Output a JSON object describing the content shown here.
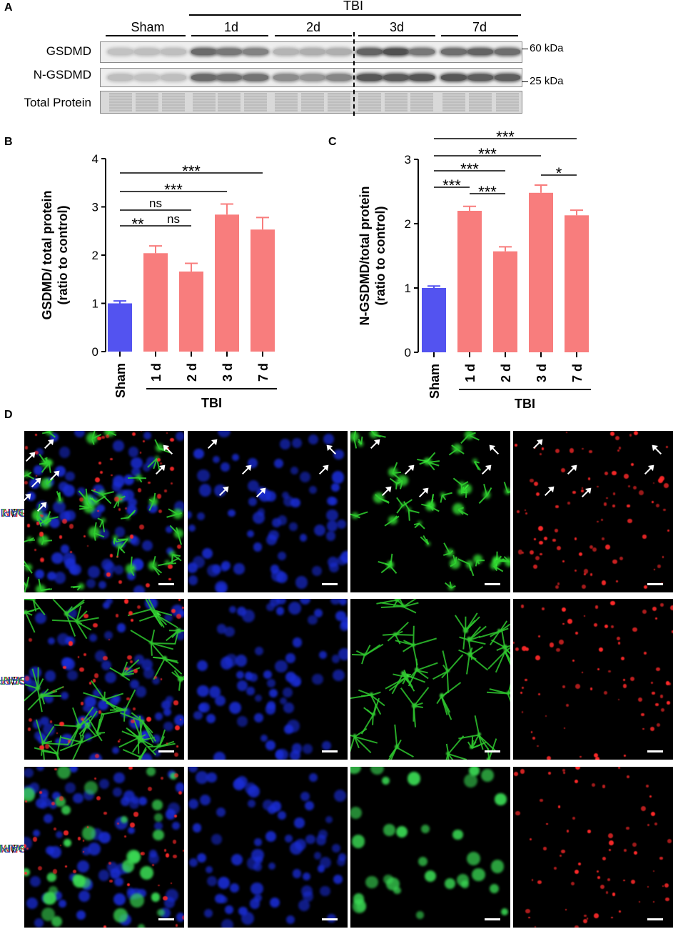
{
  "panels": {
    "a": "A",
    "b": "B",
    "c": "C",
    "d": "D"
  },
  "blot": {
    "tbi_label": "TBI",
    "groups": [
      "Sham",
      "1d",
      "2d",
      "3d",
      "7d"
    ],
    "rows": [
      "GSDMD",
      "N-GSDMD",
      "Total Protein"
    ],
    "markers": [
      "60 kDa",
      "25 kDa"
    ]
  },
  "chart_data": [
    {
      "type": "bar",
      "categories": [
        "Sham",
        "1 d",
        "2 d",
        "3 d",
        "7 d"
      ],
      "values": [
        1.0,
        2.04,
        1.66,
        2.84,
        2.53
      ],
      "errors": [
        0.05,
        0.15,
        0.17,
        0.22,
        0.25
      ],
      "colors": [
        "#5353f0",
        "#f87d7d",
        "#f87d7d",
        "#f87d7d",
        "#f87d7d"
      ],
      "ylabel": "GSDMD/ total protein (ratio to control)",
      "ylabel_lines": [
        "GSDMD/ total protein",
        "(ratio to control)"
      ],
      "ylim": [
        0,
        4
      ],
      "yticks": [
        "0",
        "1",
        "2",
        "3",
        "4"
      ],
      "group_label": "TBI",
      "significance": [
        {
          "from": "Sham",
          "to": "7 d",
          "label": "***"
        },
        {
          "from": "Sham",
          "to": "3 d",
          "label": "***"
        },
        {
          "from": "Sham",
          "to": "2 d",
          "label": "ns"
        },
        {
          "from": "Sham",
          "to": "1 d",
          "label": "**"
        },
        {
          "from": "1 d",
          "to": "2 d",
          "label": "ns"
        }
      ]
    },
    {
      "type": "bar",
      "categories": [
        "Sham",
        "1 d",
        "2 d",
        "3 d",
        "7 d"
      ],
      "values": [
        1.0,
        2.2,
        1.57,
        2.48,
        2.13
      ],
      "errors": [
        0.03,
        0.07,
        0.07,
        0.12,
        0.08
      ],
      "colors": [
        "#5353f0",
        "#f87d7d",
        "#f87d7d",
        "#f87d7d",
        "#f87d7d"
      ],
      "ylabel": "N-GSDMD/total protein (ratio to control)",
      "ylabel_lines": [
        "N-GSDMD/total protein",
        "(ratio to control)"
      ],
      "ylim": [
        0,
        3
      ],
      "yticks": [
        "0",
        "1",
        "2",
        "3"
      ],
      "group_label": "TBI",
      "significance": [
        {
          "from": "Sham",
          "to": "7 d",
          "label": "***"
        },
        {
          "from": "Sham",
          "to": "3 d",
          "label": "***"
        },
        {
          "from": "Sham",
          "to": "2 d",
          "label": "***"
        },
        {
          "from": "3 d",
          "to": "7 d",
          "label": "*"
        },
        {
          "from": "Sham",
          "to": "1 d",
          "label": "***"
        },
        {
          "from": "1 d",
          "to": "2 d",
          "label": "***"
        }
      ]
    }
  ],
  "microscopy": {
    "rows": [
      {
        "stain": "GSDMD",
        "marker": "Iba-1",
        "nucleus": "DAPI"
      },
      {
        "stain": "GSDMD",
        "marker": "GFAP",
        "nucleus": "DAPI"
      },
      {
        "stain": "GSDMD",
        "marker": "NeuN",
        "nucleus": "DAPI"
      }
    ],
    "separator": "/"
  }
}
